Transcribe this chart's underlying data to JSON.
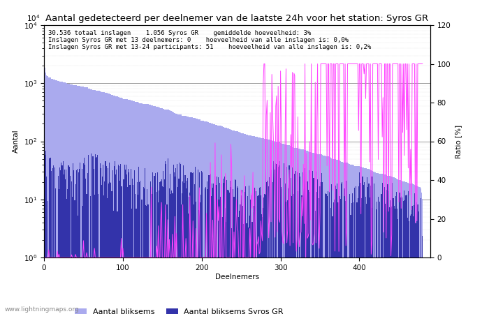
{
  "title": "Aantal gedetecteerd per deelnemer van de laatste 24h voor het station: Syros GR",
  "xlabel": "Deelnemers",
  "ylabel_left": "Aantal",
  "ylabel_right": "Ratio [%]",
  "annotation_lines": [
    "30.536 totaal inslagen    1.056 Syros GR    gemiddelde hoeveelheid: 3%",
    "Inslagen Syros GR met 13 deelnemers: 0    hoeveelheid van alle inslagen is: 0,0%",
    "Inslagen Syros GR met 13-24 participants: 51    hoeveelheid van alle inslagen is: 0,2%"
  ],
  "watermark": "www.lightningmaps.org",
  "bar_color_light": "#aaaaee",
  "bar_color_dark": "#3333aa",
  "line_color": "#ff44ff",
  "ylim_right": [
    0,
    120
  ],
  "xlim": [
    0,
    490
  ],
  "n_participants": 480,
  "title_fontsize": 9.5,
  "tick_fontsize": 7.5,
  "annot_fontsize": 6.5,
  "legend_fontsize": 8
}
